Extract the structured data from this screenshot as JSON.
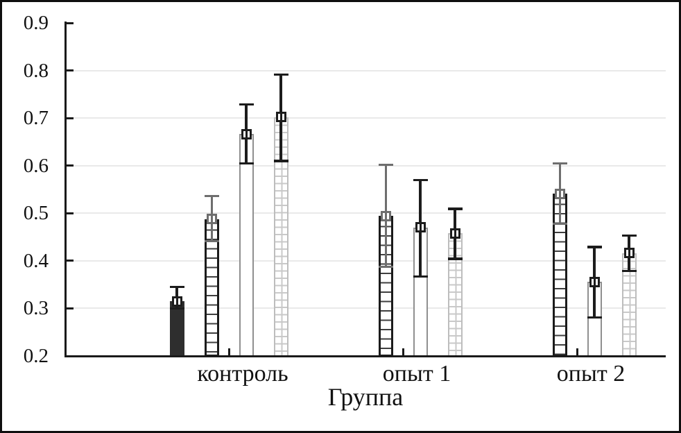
{
  "chart_data": {
    "type": "bar",
    "title": "",
    "xlabel": "Группа",
    "ylabel": "",
    "ylim": [
      0.2,
      0.9
    ],
    "ytick_labels": [
      "0.2",
      "0.3",
      "0.4",
      "0.5",
      "0.6",
      "0.7",
      "0.8",
      "0.9"
    ],
    "grid": "horizontal",
    "legend": "none",
    "categories": [
      "контроль",
      "опыт 1",
      "опыт 2"
    ],
    "series": [
      {
        "name": "solid-dark-bar",
        "pattern": "solid",
        "values": [
          0.315,
          null,
          null
        ],
        "err_low": [
          0.3,
          null,
          null
        ],
        "err_high": [
          0.345,
          null,
          null
        ]
      },
      {
        "name": "horizontal-hatch-bar",
        "pattern": "hatch-horizontal",
        "values": [
          0.488,
          0.494,
          0.541
        ],
        "err_low": [
          0.441,
          0.387,
          0.478
        ],
        "err_high": [
          0.536,
          0.602,
          0.604
        ]
      },
      {
        "name": "plain-white-bar",
        "pattern": "plain",
        "values": [
          0.666,
          0.47,
          0.356
        ],
        "err_low": [
          0.605,
          0.367,
          0.281
        ],
        "err_high": [
          0.729,
          0.57,
          0.429
        ]
      },
      {
        "name": "grid-pattern-bar",
        "pattern": "grid",
        "values": [
          0.702,
          0.458,
          0.416
        ],
        "err_low": [
          0.61,
          0.404,
          0.379
        ],
        "err_high": [
          0.791,
          0.509,
          0.453
        ]
      }
    ],
    "error_color_by_series": [
      "error_black",
      "error_gray",
      "error_black",
      "error_black"
    ],
    "colors": {
      "solid_fill": "#2e2e2e",
      "hatch_line": "#3f3f3f",
      "hatch_border": "#1b1b1b",
      "plain_border": "#8f8f8f",
      "grid_line": "#c9c9c9",
      "grid_border": "#bdbdbd",
      "error_black": "#1c1c1c",
      "error_gray": "#6e6e6e",
      "axis": "#1a1a1a",
      "gridline": "#e9e9e9",
      "marker_fill": "#ffffff",
      "text": "#111111"
    }
  }
}
